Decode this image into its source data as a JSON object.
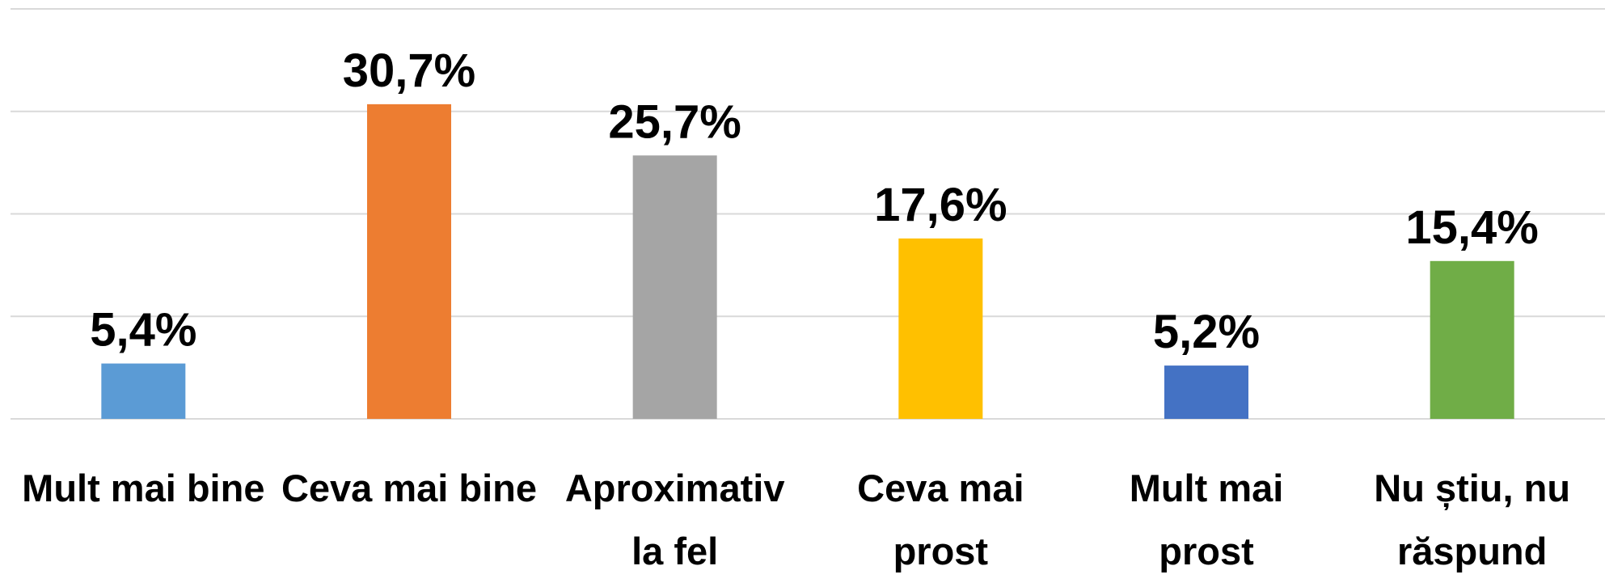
{
  "chart_data": {
    "type": "bar",
    "categories": [
      "Mult mai bine",
      "Ceva mai bine",
      "Aproximativ la fel",
      "Ceva mai prost",
      "Mult mai prost",
      "Nu știu, nu răspund"
    ],
    "values": [
      5.4,
      30.7,
      25.7,
      17.6,
      5.2,
      15.4
    ],
    "value_labels": [
      "5,4%",
      "30,7%",
      "25,7%",
      "17,6%",
      "5,2%",
      "15,4%"
    ],
    "colors": [
      "#5b9bd5",
      "#ed7d31",
      "#a5a5a5",
      "#ffc000",
      "#4472c4",
      "#70ad47"
    ],
    "ylim": [
      0,
      40
    ],
    "yticks": [
      0,
      10,
      20,
      30,
      40
    ],
    "grid": true
  }
}
